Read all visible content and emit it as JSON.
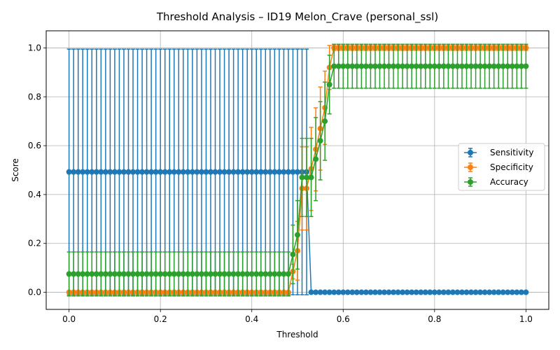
{
  "chart_data": {
    "type": "line",
    "title": "Threshold Analysis – ID19 Melon_Crave (personal_ssl)",
    "xlabel": "Threshold",
    "ylabel": "Score",
    "xlim": [
      -0.05,
      1.05
    ],
    "ylim": [
      -0.07,
      1.07
    ],
    "xticks": [
      "0.0",
      "0.2",
      "0.4",
      "0.6",
      "0.8",
      "1.0"
    ],
    "yticks": [
      "0.0",
      "0.2",
      "0.4",
      "0.6",
      "0.8",
      "1.0"
    ],
    "grid": true,
    "legend_position": "center-right",
    "x": {
      "start": 0.0,
      "stop": 1.0,
      "count": 101
    },
    "series": [
      {
        "name": "Sensitivity",
        "color": "#1f77b4",
        "segments": [
          {
            "from": 0.0,
            "to": 0.52,
            "value": 0.4925,
            "err": 0.5025
          },
          {
            "from": 0.53,
            "to": 1.0,
            "value": 0.0,
            "err": 0.0
          }
        ]
      },
      {
        "name": "Specificity",
        "color": "#ff7f0e",
        "segments": [
          {
            "from": 0.0,
            "to": 0.48,
            "value": 0.0,
            "err": 0.0
          },
          {
            "from": 0.58,
            "to": 1.0,
            "value": 1.0,
            "err": 0.01
          }
        ],
        "points": [
          {
            "x": 0.49,
            "y": 0.085,
            "err": 0.03
          },
          {
            "x": 0.5,
            "y": 0.17,
            "err": 0.12
          },
          {
            "x": 0.51,
            "y": 0.425,
            "err": 0.17
          },
          {
            "x": 0.52,
            "y": 0.425,
            "err": 0.17
          },
          {
            "x": 0.53,
            "y": 0.505,
            "err": 0.17
          },
          {
            "x": 0.54,
            "y": 0.585,
            "err": 0.17
          },
          {
            "x": 0.55,
            "y": 0.67,
            "err": 0.17
          },
          {
            "x": 0.56,
            "y": 0.755,
            "err": 0.15
          },
          {
            "x": 0.57,
            "y": 0.92,
            "err": 0.09
          }
        ]
      },
      {
        "name": "Accuracy",
        "color": "#2ca02c",
        "segments": [
          {
            "from": 0.0,
            "to": 0.48,
            "value": 0.075,
            "err": 0.09
          },
          {
            "from": 0.58,
            "to": 1.0,
            "value": 0.925,
            "err": 0.09
          }
        ],
        "points": [
          {
            "x": 0.49,
            "y": 0.155,
            "err": 0.12
          },
          {
            "x": 0.5,
            "y": 0.235,
            "err": 0.14
          },
          {
            "x": 0.51,
            "y": 0.47,
            "err": 0.16
          },
          {
            "x": 0.52,
            "y": 0.47,
            "err": 0.16
          },
          {
            "x": 0.53,
            "y": 0.47,
            "err": 0.16
          },
          {
            "x": 0.54,
            "y": 0.545,
            "err": 0.17
          },
          {
            "x": 0.55,
            "y": 0.62,
            "err": 0.16
          },
          {
            "x": 0.56,
            "y": 0.7,
            "err": 0.16
          },
          {
            "x": 0.57,
            "y": 0.85,
            "err": 0.12
          }
        ]
      }
    ]
  }
}
